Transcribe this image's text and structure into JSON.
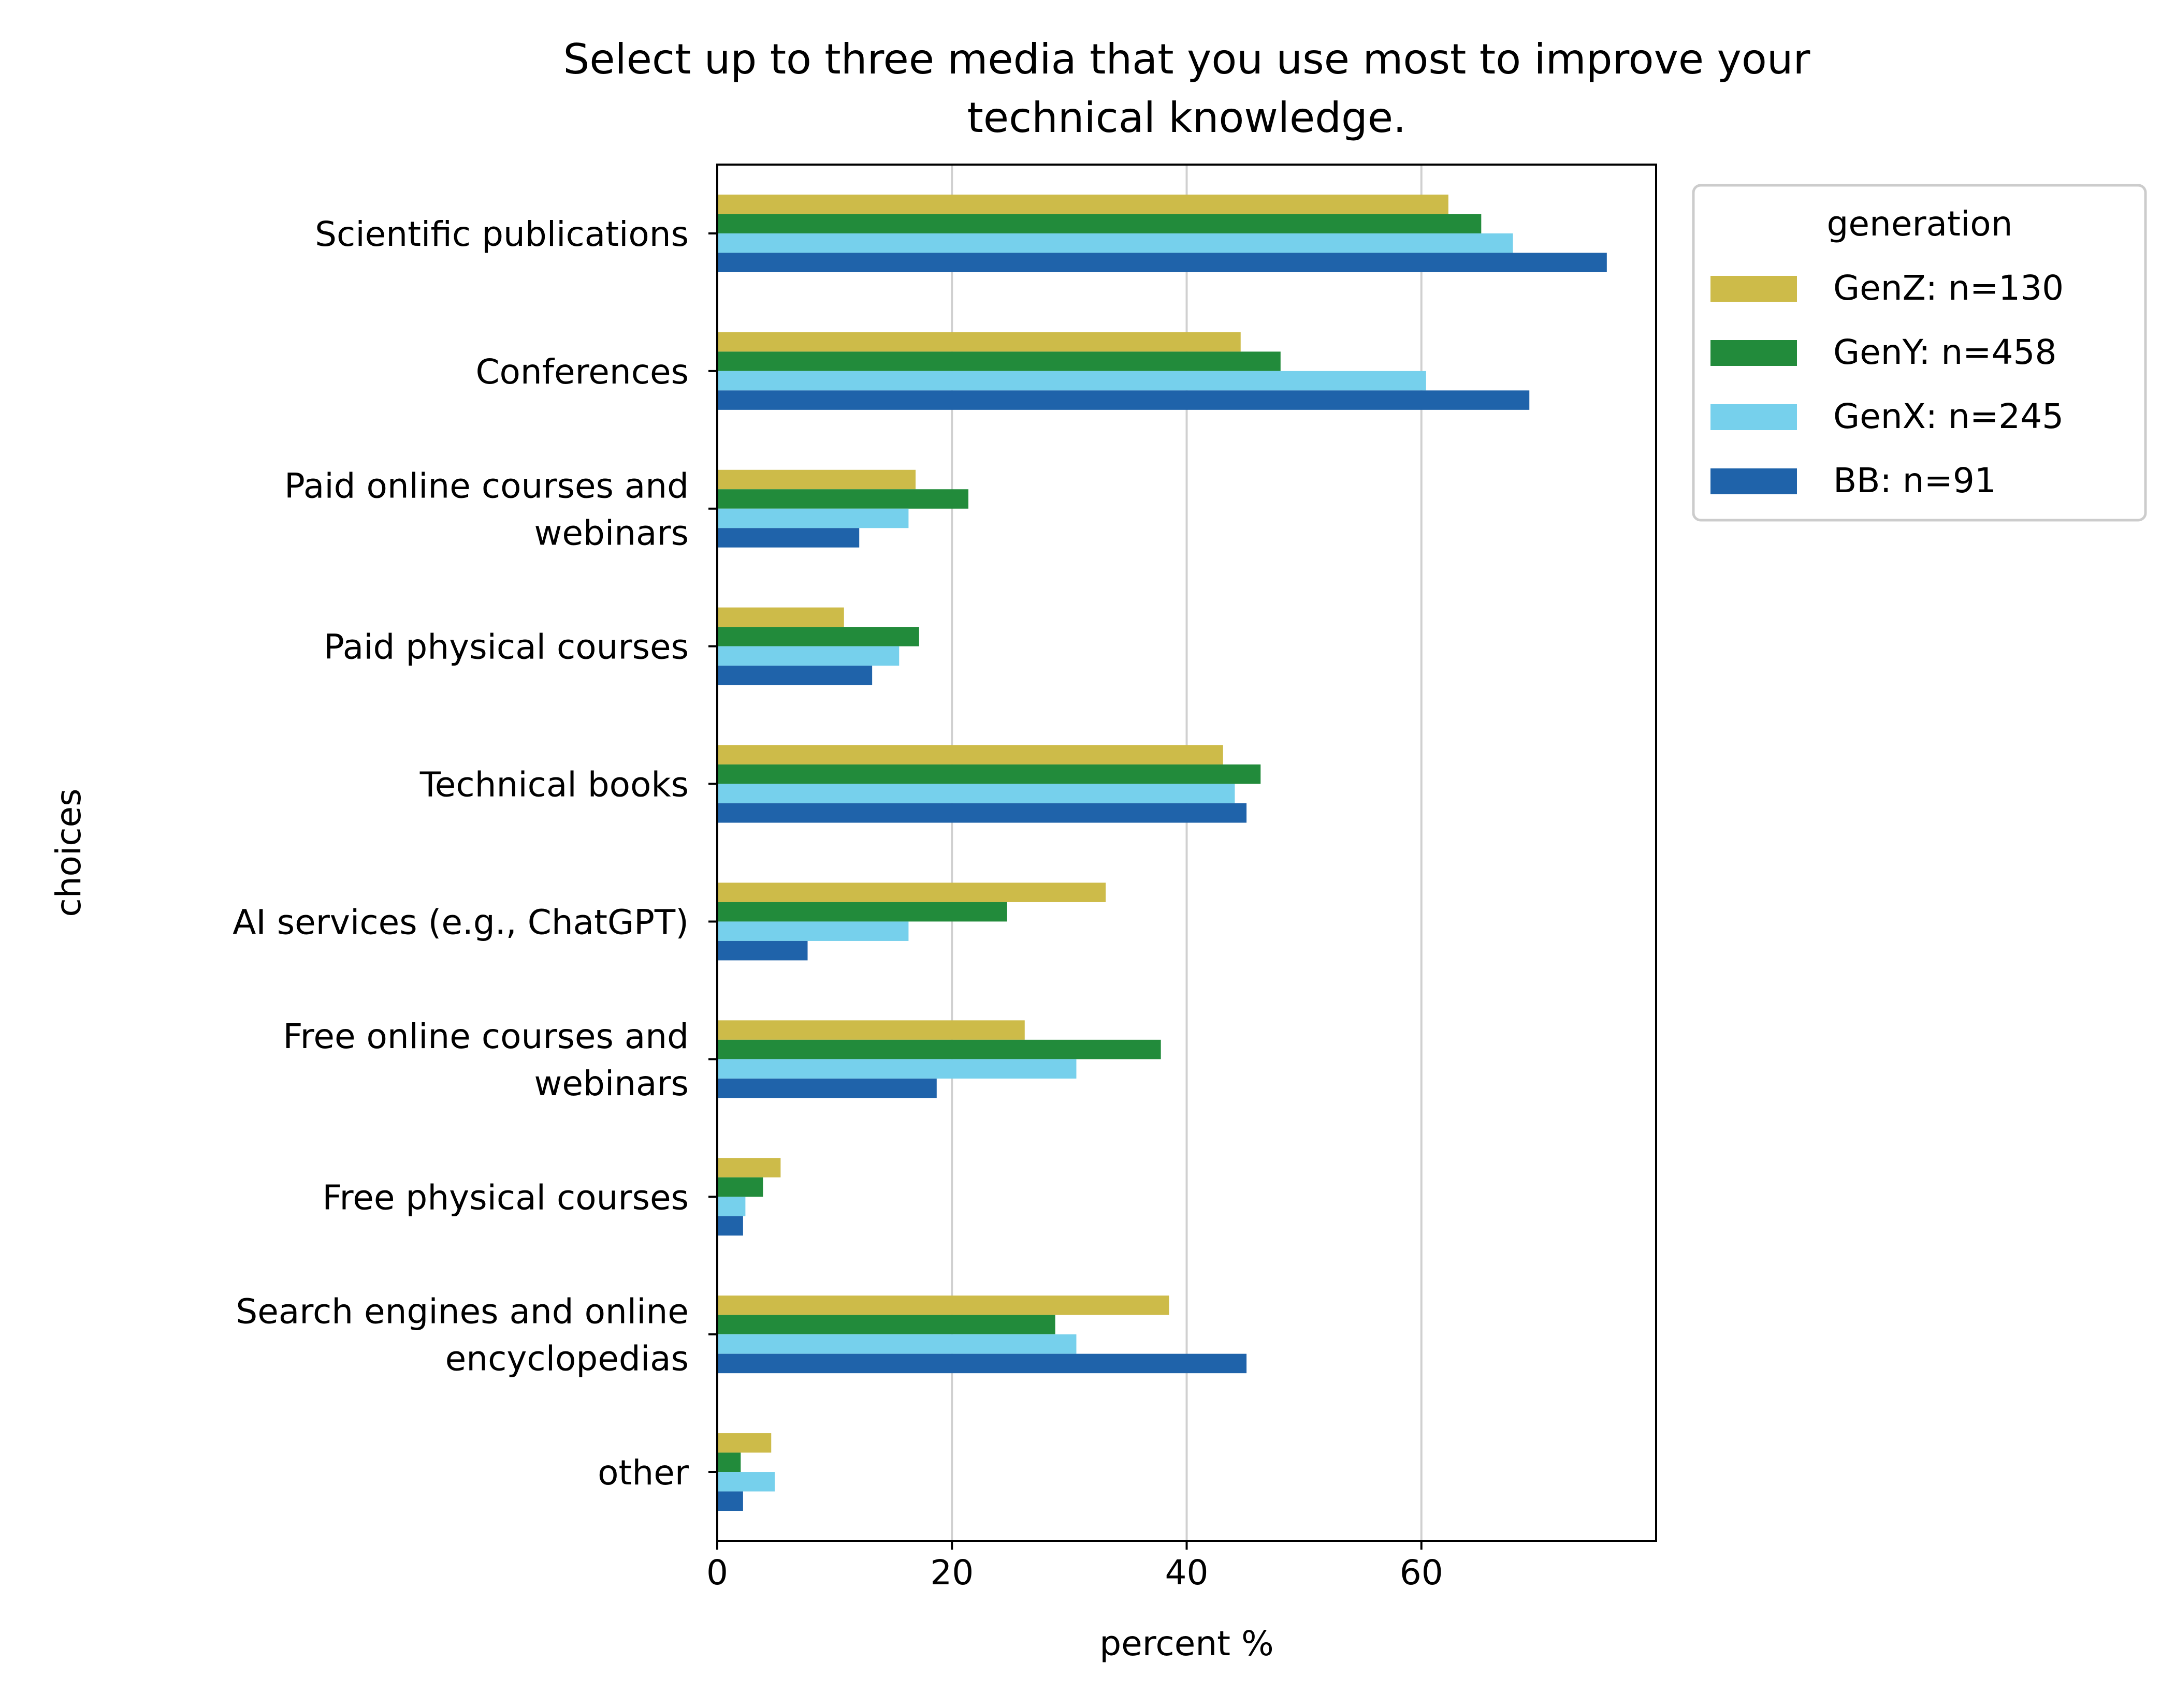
{
  "chart_data": {
    "type": "bar",
    "orientation": "horizontal",
    "title_lines": [
      "Select up to three media that you use most to improve your",
      "technical knowledge."
    ],
    "xlabel": "percent %",
    "ylabel": "choices",
    "xlim": [
      0,
      80
    ],
    "xticks": [
      0,
      20,
      40,
      60
    ],
    "grid": "vertical",
    "legend": {
      "title": "generation",
      "placement": "outside-top-right"
    },
    "categories": [
      [
        "Scientific publications"
      ],
      [
        "Conferences"
      ],
      [
        "Paid online courses and",
        "webinars"
      ],
      [
        "Paid physical courses"
      ],
      [
        "Technical books"
      ],
      [
        "AI services (e.g., ChatGPT)"
      ],
      [
        "Free online courses and",
        "webinars"
      ],
      [
        "Free physical courses"
      ],
      [
        "Search engines and online",
        "encyclopedias"
      ],
      [
        "other"
      ]
    ],
    "series": [
      {
        "name": "GenZ: n=130",
        "color": "#CDBB49",
        "values": [
          62.3,
          44.6,
          16.9,
          10.8,
          43.1,
          33.1,
          26.2,
          5.4,
          38.5,
          4.6
        ]
      },
      {
        "name": "GenY: n=458",
        "color": "#228B3B",
        "values": [
          65.1,
          48.0,
          21.4,
          17.2,
          46.3,
          24.7,
          37.8,
          3.9,
          28.8,
          2.0
        ]
      },
      {
        "name": "GenX: n=245",
        "color": "#76D0EC",
        "values": [
          67.8,
          60.4,
          16.3,
          15.5,
          44.1,
          16.3,
          30.6,
          2.4,
          30.6,
          4.9
        ]
      },
      {
        "name": "BB: n=91",
        "color": "#1F63AA",
        "values": [
          75.8,
          69.2,
          12.1,
          13.2,
          45.1,
          7.7,
          18.7,
          2.2,
          45.1,
          2.2
        ]
      }
    ]
  }
}
